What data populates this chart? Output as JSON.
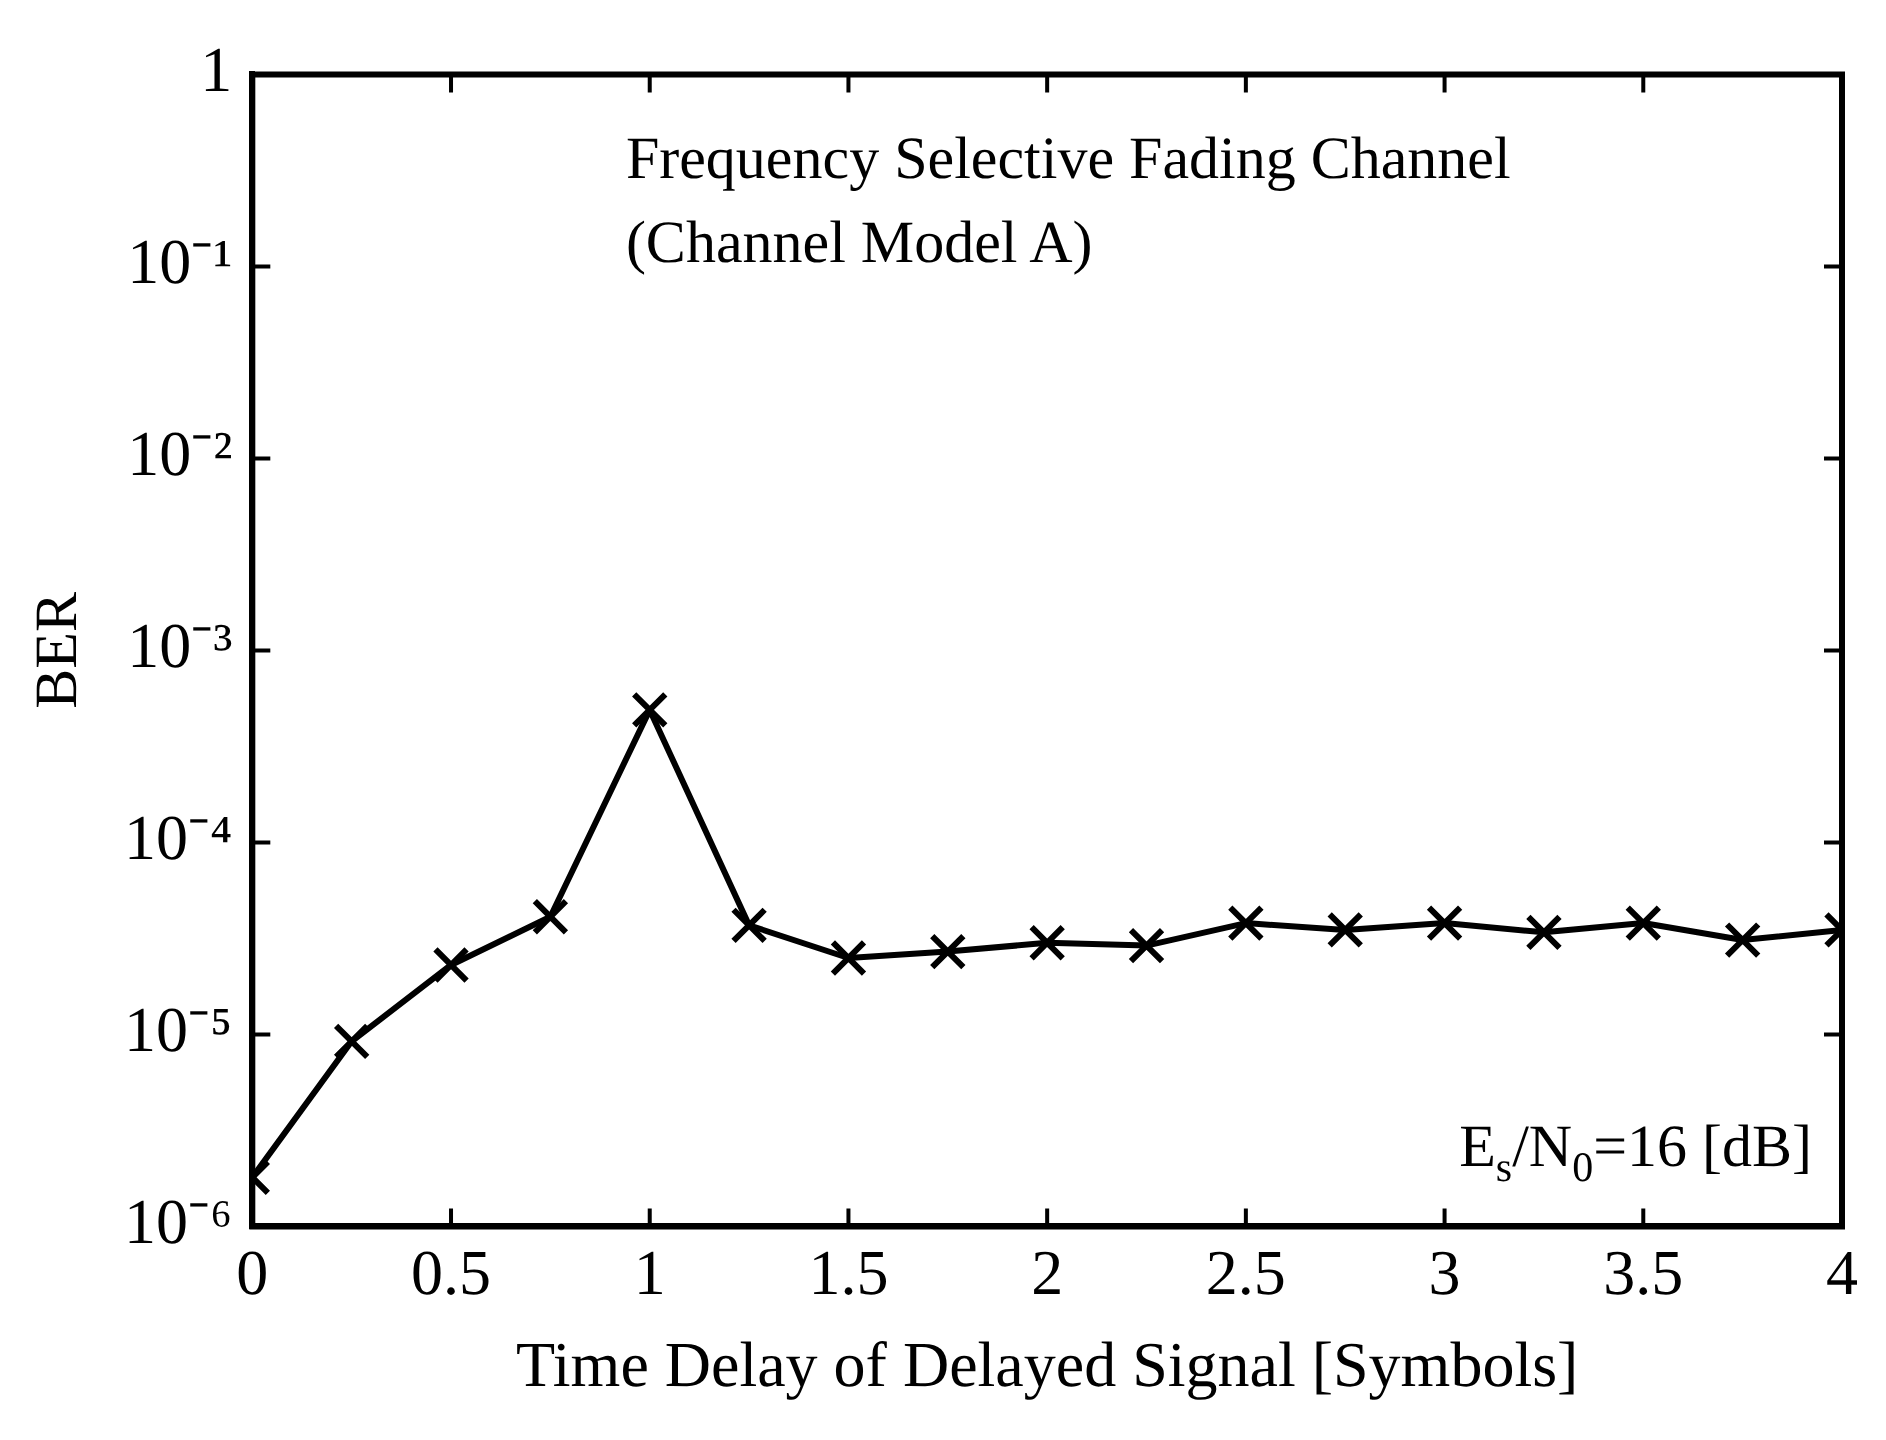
{
  "chart_data": {
    "type": "line",
    "xlabel": "Time Delay of Delayed Signal [Symbols]",
    "ylabel": "BER",
    "log": "y",
    "annotations": [
      "Frequency Selective Fading Channel",
      "(Channel Model A)",
      "E$_{s}$/N$_{0}$=16 [dB]"
    ],
    "x": [
      0,
      0.25,
      0.5,
      0.75,
      1,
      1.25,
      1.5,
      1.75,
      2,
      2.25,
      2.5,
      2.75,
      3,
      3.25,
      3.5,
      3.75,
      4
    ],
    "series": [
      {
        "color": "#000000",
        "values": [
          1.8e-06,
          9.2e-06,
          2.3e-05,
          4.1e-05,
          0.00049,
          3.7e-05,
          2.5e-05,
          2.7e-05,
          3e-05,
          2.9e-05,
          3.8e-05,
          3.5e-05,
          3.8e-05,
          3.4e-05,
          3.8e-05,
          3.1e-05,
          3.5e-05
        ]
      }
    ],
    "xlim": [
      0,
      4
    ],
    "xticks": [
      0,
      0.5,
      1,
      1.5,
      2,
      2.5,
      3,
      3.5,
      4
    ],
    "ylim": [
      1e-06,
      1
    ],
    "yticks": [
      {
        "value": 1e-06,
        "label": "10⁻⁶"
      },
      {
        "value": 1e-05,
        "label": "10⁻⁵"
      },
      {
        "value": 0.0001,
        "label": "10⁻⁴"
      },
      {
        "value": 0.001,
        "label": "10⁻³"
      },
      {
        "value": 0.01,
        "label": "10⁻²"
      },
      {
        "value": 0.1,
        "label": "10⁻¹"
      },
      1
    ],
    "grid": false,
    "legend": false,
    "marker": "cross",
    "line_style": "solid"
  }
}
